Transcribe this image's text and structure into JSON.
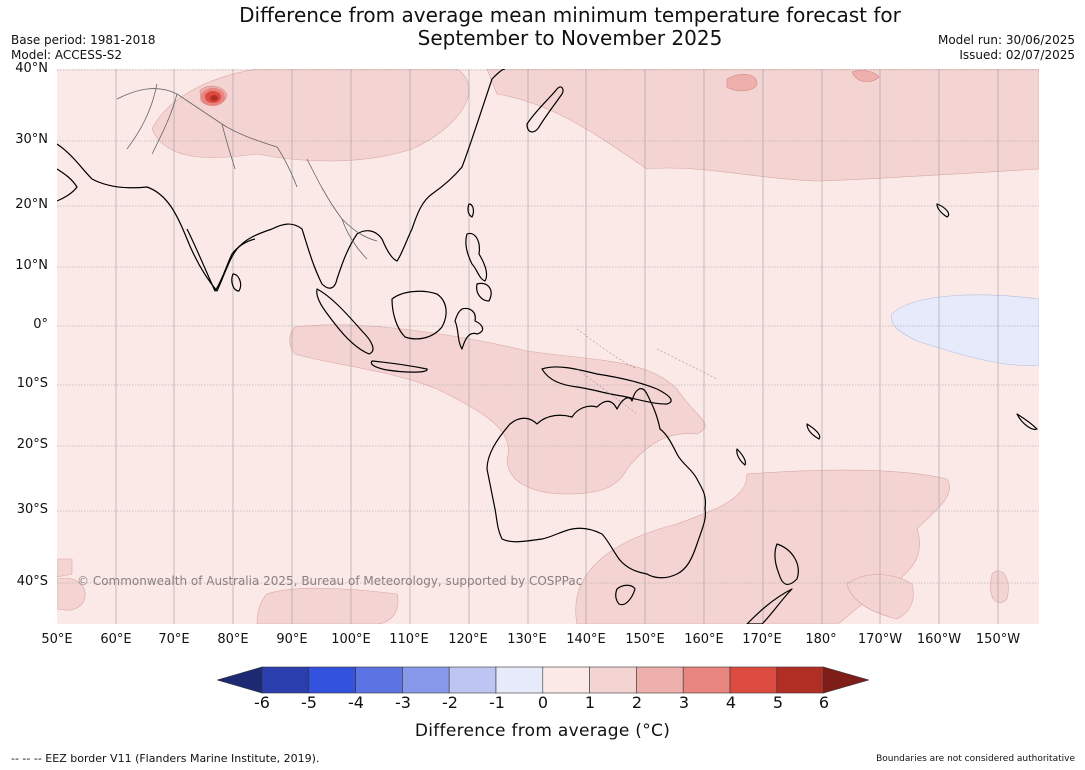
{
  "title_line1": "Difference from average mean minimum temperature forecast for",
  "title_line2": "September to November 2025",
  "base_period": "Base period: 1981-2018",
  "model": "Model: ACCESS-S2",
  "model_run": "Model run: 30/06/2025",
  "issued": "Issued: 02/07/2025",
  "copyright": "© Commonwealth of Australia 2025, Bureau of Meteorology, supported by COSPPac",
  "lat_labels": [
    "40°N",
    "30°N",
    "20°N",
    "10°N",
    "0°",
    "10°S",
    "20°S",
    "30°S",
    "40°S"
  ],
  "lon_labels": [
    "50°E",
    "60°E",
    "70°E",
    "80°E",
    "90°E",
    "100°E",
    "110°E",
    "120°E",
    "130°E",
    "140°E",
    "150°E",
    "160°E",
    "170°E",
    "180°",
    "170°W",
    "160°W",
    "150°W"
  ],
  "colorbar": {
    "ticks": [
      "-6",
      "-5",
      "-4",
      "-3",
      "-2",
      "-1",
      "0",
      "1",
      "2",
      "3",
      "4",
      "5",
      "6"
    ],
    "colors": [
      "#1b2a73",
      "#2a3eae",
      "#3352de",
      "#5c73e3",
      "#8797ea",
      "#bdc6f3",
      "#e6eafa",
      "#fbe9e8",
      "#f4d4d2",
      "#eeb0ac",
      "#e88580",
      "#dc4b40",
      "#b12e24",
      "#7f1d18"
    ],
    "label": "Difference from average (°C)"
  },
  "footer_left": "--  --  -- EEZ border V11 (Flanders Marine Institute, 2019).",
  "footer_right": "Boundaries are not considered authoritative"
}
